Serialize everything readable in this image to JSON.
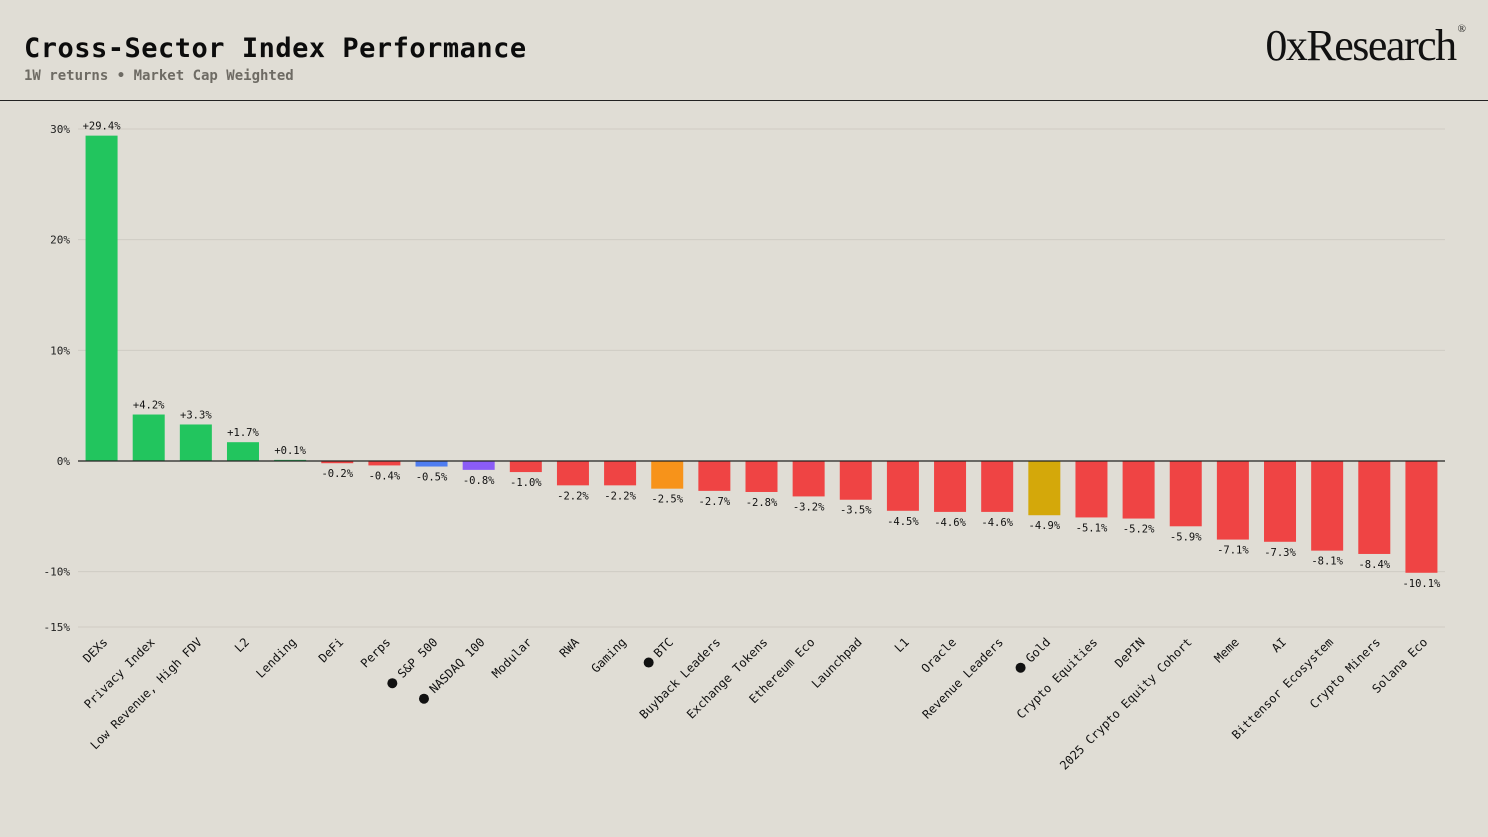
{
  "header": {
    "title": "Cross-Sector Index Performance",
    "subtitle": "1W returns • Market Cap Weighted",
    "brand": "0xResearch",
    "brand_mark": "®"
  },
  "colors": {
    "positive": "#22c55e",
    "negative": "#ef4444",
    "sp500": "#4f7df0",
    "nasdaq": "#8b5cf6",
    "btc": "#f7931a",
    "gold": "#d4a80a",
    "grid": "#cfccc4",
    "axis": "#222222",
    "marker": "#111111"
  },
  "chart_data": {
    "type": "bar",
    "title": "Cross-Sector Index Performance",
    "subtitle": "1W returns • Market Cap Weighted",
    "ylim": [
      -15,
      30
    ],
    "y_ticks": [
      30,
      20,
      10,
      0,
      -10,
      -15
    ],
    "y_tick_labels": [
      "30%",
      "20%",
      "10%",
      "0%",
      "-10%",
      "-15%"
    ],
    "grid": true,
    "categories": [
      "DEXs",
      "Privacy Index",
      "Low Revenue, High FDV",
      "L2",
      "Lending",
      "DeFi",
      "Perps",
      "S&P 500",
      "NASDAQ 100",
      "Modular",
      "RWA",
      "Gaming",
      "BTC",
      "Buyback Leaders",
      "Exchange Tokens",
      "Ethereum Eco",
      "Launchpad",
      "L1",
      "Oracle",
      "Revenue Leaders",
      "Gold",
      "Crypto Equities",
      "DePIN",
      "2025 Crypto Equity Cohort",
      "Meme",
      "AI",
      "Bittensor Ecosystem",
      "Crypto Miners",
      "Solana Eco"
    ],
    "values": [
      29.4,
      4.2,
      3.3,
      1.7,
      0.1,
      -0.2,
      -0.4,
      -0.5,
      -0.8,
      -1.0,
      -2.2,
      -2.2,
      -2.5,
      -2.7,
      -2.8,
      -3.2,
      -3.5,
      -4.5,
      -4.6,
      -4.6,
      -4.9,
      -5.1,
      -5.2,
      -5.9,
      -7.1,
      -7.3,
      -8.1,
      -8.4,
      -10.1
    ],
    "value_labels": [
      "+29.4%",
      "+4.2%",
      "+3.3%",
      "+1.7%",
      "+0.1%",
      "-0.2%",
      "-0.4%",
      "-0.5%",
      "-0.8%",
      "-1.0%",
      "-2.2%",
      "-2.2%",
      "-2.5%",
      "-2.7%",
      "-2.8%",
      "-3.2%",
      "-3.5%",
      "-4.5%",
      "-4.6%",
      "-4.6%",
      "-4.9%",
      "-5.1%",
      "-5.2%",
      "-5.9%",
      "-7.1%",
      "-7.3%",
      "-8.1%",
      "-8.4%",
      "-10.1%"
    ],
    "benchmarks": [
      "S&P 500",
      "NASDAQ 100",
      "BTC",
      "Gold"
    ],
    "benchmark_colors": {
      "S&P 500": "#4f7df0",
      "NASDAQ 100": "#8b5cf6",
      "BTC": "#f7931a",
      "Gold": "#d4a80a"
    }
  }
}
